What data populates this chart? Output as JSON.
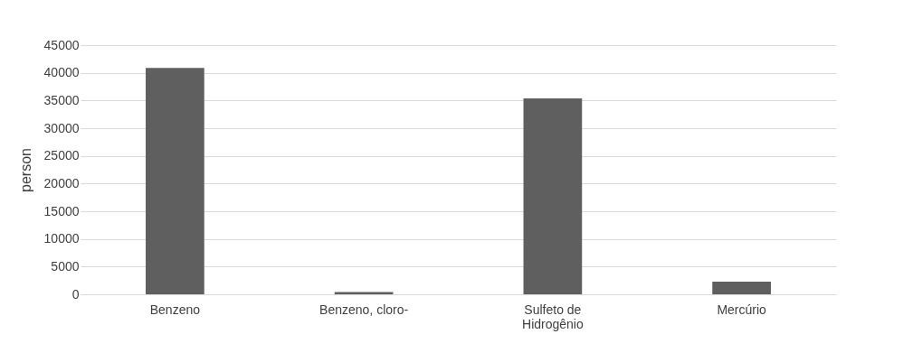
{
  "chart_data": {
    "type": "bar",
    "ylabel": "person",
    "categories": [
      "Benzeno",
      "Benzeno, cloro-",
      "Sulfeto de Hidrogênio",
      "Mercúrio"
    ],
    "values": [
      40900,
      400,
      35400,
      2300
    ],
    "color": "#5f5f5f",
    "ylim": [
      0,
      45000
    ],
    "yticks": [
      0,
      5000,
      10000,
      15000,
      20000,
      25000,
      30000,
      35000,
      40000,
      45000
    ],
    "grid": "y"
  }
}
